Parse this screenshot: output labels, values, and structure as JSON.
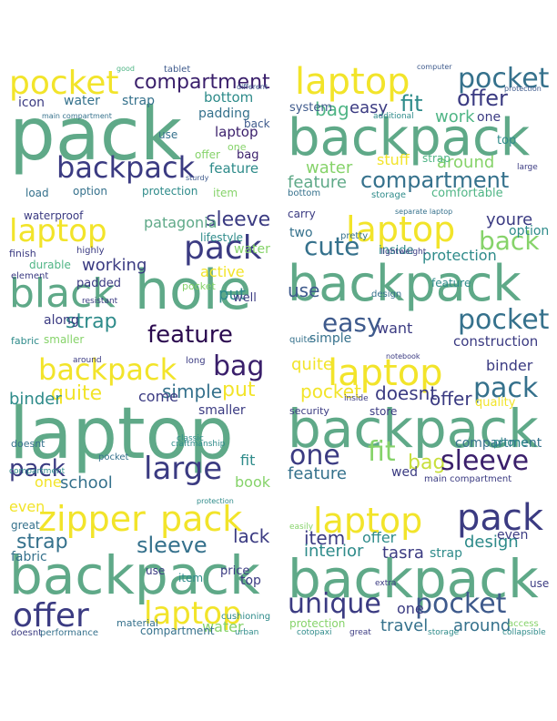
{
  "palette": {
    "yellow": "#f2e42a",
    "yellowgreen": "#c8df3c",
    "lime": "#86d36a",
    "green": "#4fb585",
    "seagreen": "#5fa988",
    "teal": "#2e8b8a",
    "tealblue": "#35718c",
    "blue": "#3e5a8c",
    "navy": "#3b3b82",
    "indigo": "#3a1f6b",
    "purple": "#2b0a4f"
  },
  "clouds": [
    {
      "words": [
        {
          "t": "pocket",
          "c": "yellow"
        },
        {
          "t": "compartment",
          "c": "indigo"
        },
        {
          "t": "tablet",
          "c": "blue"
        },
        {
          "t": "pack",
          "c": "seagreen"
        },
        {
          "t": "backpack",
          "c": "navy"
        },
        {
          "t": "water",
          "c": "tealblue"
        },
        {
          "t": "strap",
          "c": "tealblue"
        },
        {
          "t": "icon",
          "c": "navy"
        },
        {
          "t": "bottom",
          "c": "teal"
        },
        {
          "t": "padding",
          "c": "tealblue"
        },
        {
          "t": "laptop",
          "c": "indigo"
        },
        {
          "t": "feature",
          "c": "teal"
        },
        {
          "t": "bag",
          "c": "indigo"
        },
        {
          "t": "back",
          "c": "blue"
        },
        {
          "t": "use",
          "c": "tealblue"
        },
        {
          "t": "offer",
          "c": "lime"
        },
        {
          "t": "one",
          "c": "lime"
        },
        {
          "t": "option",
          "c": "tealblue"
        },
        {
          "t": "protection",
          "c": "teal"
        },
        {
          "t": "load",
          "c": "tealblue"
        },
        {
          "t": "item",
          "c": "lime"
        },
        {
          "t": "main compartment",
          "c": "tealblue"
        },
        {
          "t": "different",
          "c": "blue"
        },
        {
          "t": "sturdy",
          "c": "blue"
        },
        {
          "t": "good",
          "c": "green"
        }
      ]
    },
    {
      "words": [
        {
          "t": "laptop",
          "c": "yellow"
        },
        {
          "t": "pocket",
          "c": "tealblue"
        },
        {
          "t": "backpack",
          "c": "seagreen"
        },
        {
          "t": "offer",
          "c": "navy"
        },
        {
          "t": "fit",
          "c": "teal"
        },
        {
          "t": "bag",
          "c": "green"
        },
        {
          "t": "easy",
          "c": "navy"
        },
        {
          "t": "work",
          "c": "green"
        },
        {
          "t": "one",
          "c": "navy"
        },
        {
          "t": "system",
          "c": "blue"
        },
        {
          "t": "water",
          "c": "lime"
        },
        {
          "t": "feature",
          "c": "seagreen"
        },
        {
          "t": "compartment",
          "c": "tealblue"
        },
        {
          "t": "around",
          "c": "lime"
        },
        {
          "t": "stuff",
          "c": "yellow"
        },
        {
          "t": "comfortable",
          "c": "green"
        },
        {
          "t": "strap",
          "c": "green"
        },
        {
          "t": "top",
          "c": "teal"
        },
        {
          "t": "storage",
          "c": "teal"
        },
        {
          "t": "bottom",
          "c": "tealblue"
        },
        {
          "t": "protection",
          "c": "blue"
        },
        {
          "t": "computer",
          "c": "blue"
        },
        {
          "t": "additional",
          "c": "teal"
        },
        {
          "t": "large",
          "c": "navy"
        }
      ]
    },
    {
      "words": [
        {
          "t": "laptop",
          "c": "yellow"
        },
        {
          "t": "sleeve",
          "c": "navy"
        },
        {
          "t": "pack",
          "c": "navy"
        },
        {
          "t": "waterproof",
          "c": "navy"
        },
        {
          "t": "patagonia",
          "c": "seagreen"
        },
        {
          "t": "lifestyle",
          "c": "teal"
        },
        {
          "t": "black",
          "c": "seagreen"
        },
        {
          "t": "hole",
          "c": "seagreen"
        },
        {
          "t": "working",
          "c": "navy"
        },
        {
          "t": "active",
          "c": "yellow"
        },
        {
          "t": "water",
          "c": "lime"
        },
        {
          "t": "feature",
          "c": "purple"
        },
        {
          "t": "strap",
          "c": "teal"
        },
        {
          "t": "durable",
          "c": "green"
        },
        {
          "t": "padded",
          "c": "navy"
        },
        {
          "t": "put",
          "c": "teal"
        },
        {
          "t": "well",
          "c": "navy"
        },
        {
          "t": "fabric",
          "c": "teal"
        },
        {
          "t": "along",
          "c": "navy"
        },
        {
          "t": "smaller",
          "c": "lime"
        },
        {
          "t": "finish",
          "c": "navy"
        },
        {
          "t": "highly",
          "c": "navy"
        },
        {
          "t": "element",
          "c": "navy"
        },
        {
          "t": "pocket",
          "c": "lime"
        },
        {
          "t": "resistant",
          "c": "navy"
        }
      ]
    },
    {
      "words": [
        {
          "t": "carry",
          "c": "navy"
        },
        {
          "t": "laptop",
          "c": "yellow"
        },
        {
          "t": "youre",
          "c": "navy"
        },
        {
          "t": "cute",
          "c": "tealblue"
        },
        {
          "t": "two",
          "c": "tealblue"
        },
        {
          "t": "back",
          "c": "lime"
        },
        {
          "t": "option",
          "c": "teal"
        },
        {
          "t": "inside",
          "c": "teal"
        },
        {
          "t": "protection",
          "c": "teal"
        },
        {
          "t": "backpack",
          "c": "seagreen"
        },
        {
          "t": "use",
          "c": "blue"
        },
        {
          "t": "easy",
          "c": "blue"
        },
        {
          "t": "pocket",
          "c": "tealblue"
        },
        {
          "t": "want",
          "c": "navy"
        },
        {
          "t": "simple",
          "c": "tealblue"
        },
        {
          "t": "feature",
          "c": "teal"
        },
        {
          "t": "construction",
          "c": "navy"
        },
        {
          "t": "lightweight",
          "c": "navy"
        },
        {
          "t": "design",
          "c": "tealblue"
        },
        {
          "t": "quite",
          "c": "tealblue"
        },
        {
          "t": "pretty",
          "c": "tealblue"
        },
        {
          "t": "separate laptop",
          "c": "tealblue"
        }
      ]
    },
    {
      "words": [
        {
          "t": "backpack",
          "c": "yellow"
        },
        {
          "t": "bag",
          "c": "indigo"
        },
        {
          "t": "quite",
          "c": "yellow"
        },
        {
          "t": "simple",
          "c": "tealblue"
        },
        {
          "t": "put",
          "c": "yellow"
        },
        {
          "t": "laptop",
          "c": "seagreen"
        },
        {
          "t": "binder",
          "c": "teal"
        },
        {
          "t": "come",
          "c": "navy"
        },
        {
          "t": "smaller",
          "c": "navy"
        },
        {
          "t": "pack",
          "c": "navy"
        },
        {
          "t": "large",
          "c": "navy"
        },
        {
          "t": "school",
          "c": "tealblue"
        },
        {
          "t": "one",
          "c": "yellow"
        },
        {
          "t": "book",
          "c": "lime"
        },
        {
          "t": "fit",
          "c": "teal"
        },
        {
          "t": "doesnt",
          "c": "tealblue"
        },
        {
          "t": "pocket",
          "c": "tealblue"
        },
        {
          "t": "classic",
          "c": "teal"
        },
        {
          "t": "craftmanship",
          "c": "teal"
        },
        {
          "t": "compartment",
          "c": "teal"
        },
        {
          "t": "around",
          "c": "navy"
        },
        {
          "t": "long",
          "c": "navy"
        }
      ]
    },
    {
      "words": [
        {
          "t": "laptop",
          "c": "yellow"
        },
        {
          "t": "binder",
          "c": "navy"
        },
        {
          "t": "quite",
          "c": "yellow"
        },
        {
          "t": "pocket",
          "c": "yellow"
        },
        {
          "t": "doesnt",
          "c": "navy"
        },
        {
          "t": "pack",
          "c": "tealblue"
        },
        {
          "t": "offer",
          "c": "navy"
        },
        {
          "t": "backpack",
          "c": "seagreen"
        },
        {
          "t": "one",
          "c": "navy"
        },
        {
          "t": "fit",
          "c": "lime"
        },
        {
          "t": "bag",
          "c": "yellowgreen"
        },
        {
          "t": "sleeve",
          "c": "indigo"
        },
        {
          "t": "compartment",
          "c": "tealblue"
        },
        {
          "t": "feature",
          "c": "tealblue"
        },
        {
          "t": "wed",
          "c": "navy"
        },
        {
          "t": "store",
          "c": "navy"
        },
        {
          "t": "quality",
          "c": "yellow"
        },
        {
          "t": "security",
          "c": "navy"
        },
        {
          "t": "main compartment",
          "c": "navy"
        },
        {
          "t": "notebook",
          "c": "navy"
        },
        {
          "t": "phone",
          "c": "teal"
        },
        {
          "t": "inside",
          "c": "navy"
        }
      ]
    },
    {
      "words": [
        {
          "t": "even",
          "c": "yellow"
        },
        {
          "t": "zipper",
          "c": "yellow"
        },
        {
          "t": "pack",
          "c": "yellow"
        },
        {
          "t": "lack",
          "c": "navy"
        },
        {
          "t": "strap",
          "c": "tealblue"
        },
        {
          "t": "sleeve",
          "c": "tealblue"
        },
        {
          "t": "great",
          "c": "tealblue"
        },
        {
          "t": "backpack",
          "c": "seagreen"
        },
        {
          "t": "fabric",
          "c": "tealblue"
        },
        {
          "t": "offer",
          "c": "navy"
        },
        {
          "t": "laptop",
          "c": "yellow"
        },
        {
          "t": "water",
          "c": "lime"
        },
        {
          "t": "top",
          "c": "navy"
        },
        {
          "t": "price",
          "c": "navy"
        },
        {
          "t": "use",
          "c": "navy"
        },
        {
          "t": "item",
          "c": "teal"
        },
        {
          "t": "material",
          "c": "tealblue"
        },
        {
          "t": "compartment",
          "c": "tealblue"
        },
        {
          "t": "performance",
          "c": "tealblue"
        },
        {
          "t": "doesnt",
          "c": "navy"
        },
        {
          "t": "cushioning",
          "c": "teal"
        },
        {
          "t": "protection",
          "c": "teal"
        },
        {
          "t": "urban",
          "c": "teal"
        }
      ]
    },
    {
      "words": [
        {
          "t": "laptop",
          "c": "yellow"
        },
        {
          "t": "pack",
          "c": "navy"
        },
        {
          "t": "item",
          "c": "navy"
        },
        {
          "t": "offer",
          "c": "teal"
        },
        {
          "t": "design",
          "c": "teal"
        },
        {
          "t": "interior",
          "c": "teal"
        },
        {
          "t": "tasra",
          "c": "navy"
        },
        {
          "t": "strap",
          "c": "teal"
        },
        {
          "t": "even",
          "c": "navy"
        },
        {
          "t": "backpack",
          "c": "seagreen"
        },
        {
          "t": "unique",
          "c": "navy"
        },
        {
          "t": "pocket",
          "c": "blue"
        },
        {
          "t": "one",
          "c": "navy"
        },
        {
          "t": "travel",
          "c": "tealblue"
        },
        {
          "t": "around",
          "c": "tealblue"
        },
        {
          "t": "protection",
          "c": "lime"
        },
        {
          "t": "cotopaxi",
          "c": "teal"
        },
        {
          "t": "great",
          "c": "navy"
        },
        {
          "t": "storage",
          "c": "teal"
        },
        {
          "t": "access",
          "c": "lime"
        },
        {
          "t": "collapsible",
          "c": "teal"
        },
        {
          "t": "easily",
          "c": "lime"
        },
        {
          "t": "use",
          "c": "navy"
        },
        {
          "t": "extra",
          "c": "navy"
        }
      ]
    }
  ]
}
